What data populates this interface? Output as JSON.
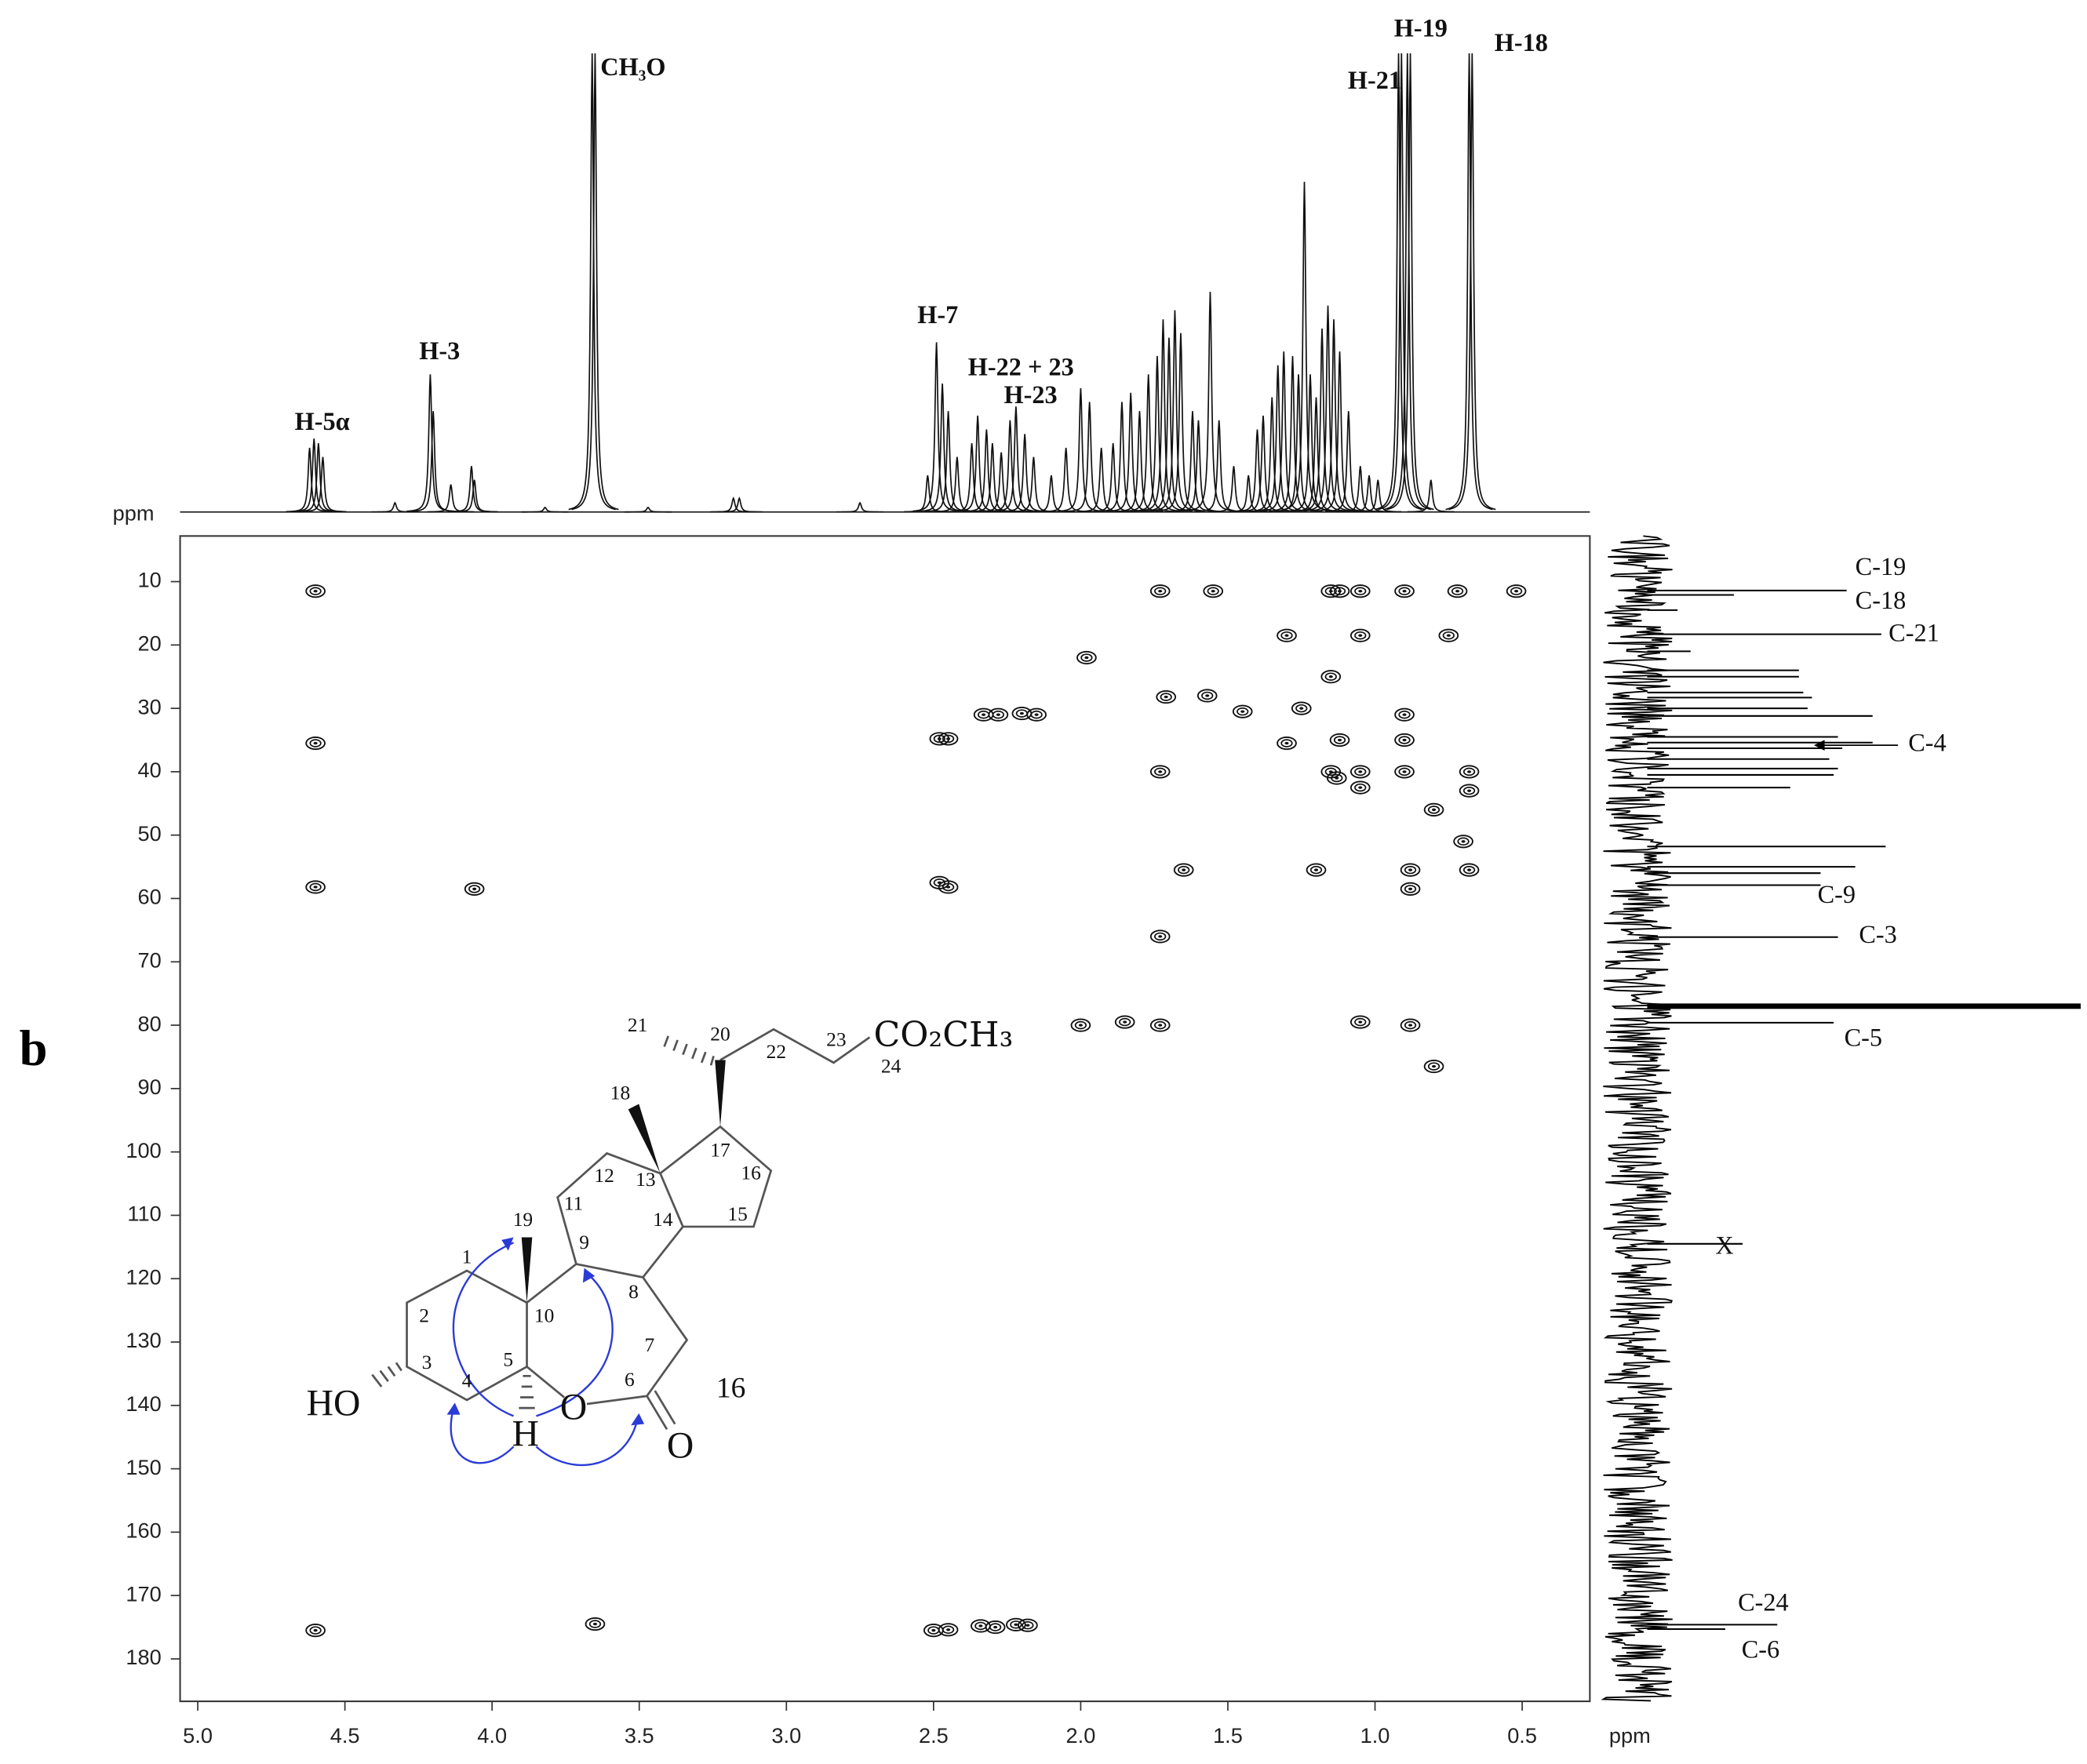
{
  "panel_label": "b",
  "chart_data": {
    "type": "hmbc",
    "x_label": "ppm",
    "y_label": "ppm",
    "xlim": [
      5.06,
      0.27
    ],
    "ylim": [
      2.8,
      186.7
    ],
    "xticks": [
      {
        "value": 5,
        "label": "5.0"
      },
      4.5,
      {
        "value": 4,
        "label": "4.0"
      },
      3.5,
      {
        "value": 3,
        "label": "3.0"
      },
      2.5,
      {
        "value": 2,
        "label": "2.0"
      },
      1.5,
      {
        "value": 1,
        "label": "1.0"
      },
      0.5
    ],
    "yticks": [
      10,
      20,
      30,
      40,
      50,
      60,
      70,
      80,
      90,
      100,
      110,
      120,
      130,
      140,
      150,
      160,
      170,
      180
    ],
    "cross_peaks": {
      "x": [
        4.6,
        4.6,
        4.6,
        4.6,
        4.06,
        3.65,
        2.48,
        2.45,
        2.48,
        2.45,
        2.5,
        2.45,
        2.34,
        2.29,
        2.22,
        2.18,
        2.33,
        2.28,
        2.2,
        2.15,
        1.73,
        1.55,
        1.71,
        1.57,
        1.73,
        1.73,
        1.73,
        1.85,
        1.98,
        2.0,
        1.65,
        1.15,
        1.12,
        1.05,
        0.9,
        0.72,
        0.52,
        1.3,
        1.05,
        0.75,
        1.15,
        1.25,
        1.45,
        1.3,
        1.12,
        1.13,
        1.05,
        1.05,
        1.2,
        0.9,
        0.9,
        0.9,
        0.88,
        0.88,
        0.68,
        0.68,
        0.68,
        0.8,
        0.7,
        1.05,
        0.88,
        0.8,
        1.15
      ],
      "y": [
        11.5,
        35.5,
        58.2,
        175.5,
        58.5,
        174.5,
        34.8,
        34.8,
        57.5,
        58.2,
        175.5,
        175.4,
        174.8,
        175.0,
        174.6,
        174.7,
        31.0,
        31.0,
        30.8,
        31.0,
        11.5,
        11.5,
        28.2,
        28.0,
        40.0,
        66.0,
        80.0,
        79.5,
        22.0,
        80.0,
        55.5,
        11.5,
        11.5,
        11.5,
        11.5,
        11.5,
        11.5,
        18.5,
        18.5,
        18.5,
        25.0,
        30.0,
        30.5,
        35.5,
        35.0,
        41.0,
        40.0,
        42.5,
        55.5,
        31.0,
        35.0,
        40.0,
        55.5,
        58.5,
        40.0,
        43.0,
        55.5,
        46.0,
        51.0,
        79.5,
        80.0,
        86.5,
        40.0
      ]
    },
    "proton_spectrum": {
      "label": "ppm",
      "x": [
        4.62,
        4.605,
        4.59,
        4.575,
        4.33,
        4.21,
        4.2,
        4.14,
        4.07,
        4.06,
        3.82,
        3.66,
        3.65,
        3.47,
        3.18,
        3.16,
        2.75,
        2.52,
        2.49,
        2.47,
        2.45,
        2.42,
        2.37,
        2.35,
        2.32,
        2.3,
        2.27,
        2.24,
        2.22,
        2.19,
        2.16,
        2.1,
        2.05,
        2.0,
        1.97,
        1.93,
        1.89,
        1.86,
        1.83,
        1.8,
        1.77,
        1.74,
        1.72,
        1.7,
        1.68,
        1.66,
        1.62,
        1.6,
        1.56,
        1.53,
        1.48,
        1.43,
        1.4,
        1.38,
        1.35,
        1.33,
        1.31,
        1.28,
        1.26,
        1.24,
        1.22,
        1.2,
        1.18,
        1.16,
        1.14,
        1.12,
        1.09,
        1.05,
        1.02,
        0.99,
        0.92,
        0.91,
        0.89,
        0.88,
        0.81,
        0.68,
        0.67
      ],
      "intensity": [
        14,
        16,
        15,
        12,
        2,
        30,
        22,
        6,
        10,
        7,
        1,
        100,
        100,
        1,
        3,
        3,
        2,
        8,
        37,
        28,
        22,
        12,
        15,
        21,
        18,
        15,
        13,
        20,
        23,
        17,
        12,
        8,
        14,
        27,
        24,
        14,
        15,
        24,
        26,
        22,
        30,
        34,
        42,
        38,
        44,
        39,
        22,
        20,
        48,
        20,
        10,
        8,
        18,
        21,
        25,
        32,
        35,
        34,
        30,
        72,
        30,
        25,
        40,
        45,
        42,
        35,
        22,
        10,
        8,
        7,
        100,
        100,
        100,
        100,
        7,
        100,
        100
      ],
      "annotations": [
        {
          "text": "H-5α",
          "ppm": 4.6
        },
        {
          "text": "H-3",
          "ppm": 4.21
        },
        {
          "text": "CH₃O",
          "ppm": 3.65
        },
        {
          "text": "H-7",
          "ppm": 2.49
        },
        {
          "text": "H-22 + 23",
          "ppm": 2.28
        },
        {
          "text": "H-23",
          "ppm": 2.22
        },
        {
          "text": "H-21",
          "ppm": 0.92
        },
        {
          "text": "H-19",
          "ppm": 0.89
        },
        {
          "text": "H-18",
          "ppm": 0.68
        }
      ]
    },
    "carbon_spectrum": {
      "x": [
        11.4,
        12.1,
        14.5,
        18.3,
        21.0,
        24.0,
        25.0,
        27.5,
        28.3,
        30.0,
        31.2,
        34.5,
        35.4,
        36.3,
        38.0,
        39.5,
        40.5,
        42.5,
        51.8,
        55.0,
        56.0,
        57.9,
        66.1,
        77.0,
        79.6,
        114.5,
        174.6,
        175.3
      ],
      "intensity": [
        46,
        20,
        7,
        54,
        10,
        35,
        35,
        36,
        38,
        37,
        52,
        44,
        52,
        45,
        42,
        44,
        43,
        33,
        55,
        48,
        40,
        40,
        44,
        100,
        43,
        22,
        30,
        18
      ],
      "annotations": [
        {
          "text": "C-19",
          "ppm": 11.4
        },
        {
          "text": "C-18",
          "ppm": 12.1
        },
        {
          "text": "C-21",
          "ppm": 18.3
        },
        {
          "text": "C-4",
          "ppm": 35.4
        },
        {
          "text": "C-9",
          "ppm": 57.9
        },
        {
          "text": "C-3",
          "ppm": 66.1
        },
        {
          "text": "C-5",
          "ppm": 79.6
        },
        {
          "text": "X",
          "ppm": 114.5
        },
        {
          "text": "C-24",
          "ppm": 174.6
        },
        {
          "text": "C-6",
          "ppm": 175.3
        }
      ]
    }
  },
  "structure": {
    "compound": "16",
    "atom_numbers": [
      "1",
      "2",
      "3",
      "4",
      "5",
      "6",
      "7",
      "8",
      "9",
      "10",
      "11",
      "12",
      "13",
      "14",
      "15",
      "16",
      "17",
      "18",
      "19",
      "20",
      "21",
      "22",
      "23",
      "24"
    ],
    "groups": [
      "HO",
      "H",
      "O",
      "O",
      "CO₂CH₃"
    ]
  }
}
